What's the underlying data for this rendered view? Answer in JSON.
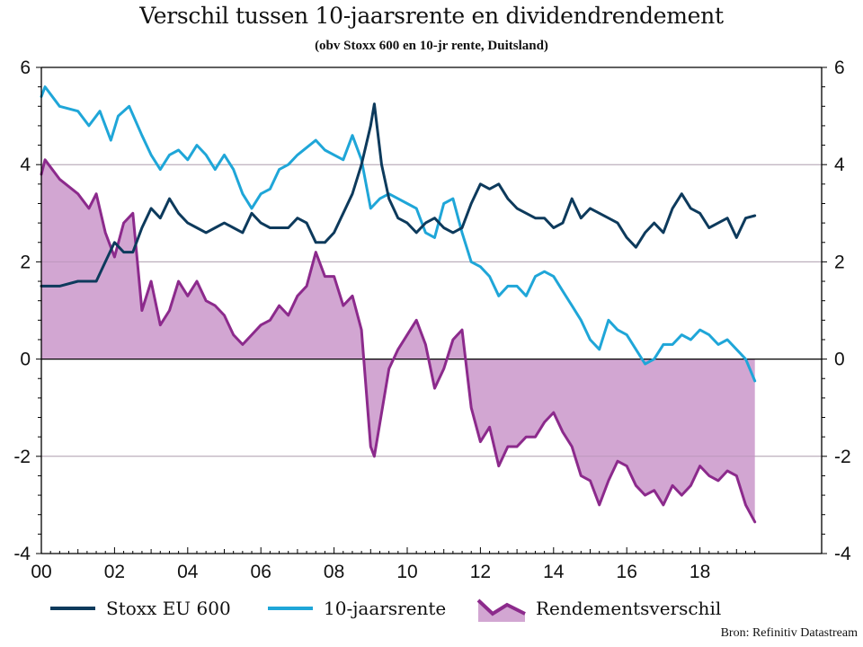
{
  "chart_data": {
    "type": "line",
    "title": "Verschil tussen 10-jaarsrente en dividendrendement",
    "subtitle": "(obv Stoxx 600 en 10-jr rente, Duitsland)",
    "source": "Bron: Refinitiv Datastream",
    "xlabel": "",
    "ylabel": "",
    "xlim": [
      2000,
      2019.6
    ],
    "ylim": [
      -4,
      6
    ],
    "y_ticks": [
      "6",
      "4",
      "2",
      "0",
      "-2",
      "-4"
    ],
    "y_tick_values": [
      6,
      4,
      2,
      0,
      -2,
      -4
    ],
    "x_ticks": [
      "00",
      "02",
      "04",
      "06",
      "08",
      "10",
      "12",
      "14",
      "16",
      "18"
    ],
    "x_tick_values": [
      2000,
      2002,
      2004,
      2006,
      2008,
      2010,
      2012,
      2014,
      2016,
      2018
    ],
    "grid": true,
    "legend_position": "bottom",
    "colors": {
      "stoxx": "#0d3a5c",
      "rente": "#1fa6d8",
      "spread_line": "#8c2a8c",
      "spread_fill": "#d2a6d2",
      "grid": "#c0c0c0",
      "axis": "#000000"
    },
    "series": [
      {
        "name": "Stoxx EU 600",
        "style": "line",
        "x": [
          2000,
          2000.5,
          2001,
          2001.5,
          2001.75,
          2002,
          2002.25,
          2002.5,
          2002.75,
          2003,
          2003.25,
          2003.5,
          2003.75,
          2004,
          2004.25,
          2004.5,
          2004.75,
          2005,
          2005.25,
          2005.5,
          2005.75,
          2006,
          2006.25,
          2006.5,
          2006.75,
          2007,
          2007.25,
          2007.5,
          2007.75,
          2008,
          2008.25,
          2008.5,
          2008.75,
          2009,
          2009.1,
          2009.3,
          2009.5,
          2009.75,
          2010,
          2010.25,
          2010.5,
          2010.75,
          2011,
          2011.25,
          2011.5,
          2011.75,
          2012,
          2012.25,
          2012.5,
          2012.75,
          2013,
          2013.25,
          2013.5,
          2013.75,
          2014,
          2014.25,
          2014.5,
          2014.75,
          2015,
          2015.25,
          2015.5,
          2015.75,
          2016,
          2016.25,
          2016.5,
          2016.75,
          2017,
          2017.25,
          2017.5,
          2017.75,
          2018,
          2018.25,
          2018.5,
          2018.75,
          2019,
          2019.25,
          2019.5
        ],
        "values": [
          1.5,
          1.5,
          1.6,
          1.6,
          2.0,
          2.4,
          2.2,
          2.2,
          2.7,
          3.1,
          2.9,
          3.3,
          3.0,
          2.8,
          2.7,
          2.6,
          2.7,
          2.8,
          2.7,
          2.6,
          3.0,
          2.8,
          2.7,
          2.7,
          2.7,
          2.9,
          2.8,
          2.4,
          2.4,
          2.6,
          3.0,
          3.4,
          4.0,
          4.8,
          5.25,
          4.0,
          3.3,
          2.9,
          2.8,
          2.6,
          2.8,
          2.9,
          2.7,
          2.6,
          2.7,
          3.2,
          3.6,
          3.5,
          3.6,
          3.3,
          3.1,
          3.0,
          2.9,
          2.9,
          2.7,
          2.8,
          3.3,
          2.9,
          3.1,
          3.0,
          2.9,
          2.8,
          2.5,
          2.3,
          2.6,
          2.8,
          2.6,
          3.1,
          3.4,
          3.1,
          3.0,
          2.7,
          2.8,
          2.9,
          2.5,
          2.9,
          2.95
        ]
      },
      {
        "name": "10-jaarsrente",
        "style": "line",
        "x": [
          2000,
          2000.1,
          2000.5,
          2001,
          2001.3,
          2001.6,
          2001.9,
          2002.1,
          2002.4,
          2002.75,
          2003,
          2003.25,
          2003.5,
          2003.75,
          2004,
          2004.25,
          2004.5,
          2004.75,
          2005,
          2005.25,
          2005.5,
          2005.75,
          2006,
          2006.25,
          2006.5,
          2006.75,
          2007,
          2007.5,
          2007.75,
          2008,
          2008.25,
          2008.5,
          2008.75,
          2009,
          2009.25,
          2009.5,
          2009.75,
          2010,
          2010.25,
          2010.5,
          2010.75,
          2011,
          2011.25,
          2011.5,
          2011.75,
          2012,
          2012.25,
          2012.5,
          2012.75,
          2013,
          2013.25,
          2013.5,
          2013.75,
          2014,
          2014.25,
          2014.5,
          2014.75,
          2015,
          2015.25,
          2015.5,
          2015.75,
          2016,
          2016.25,
          2016.5,
          2016.75,
          2017,
          2017.25,
          2017.5,
          2017.75,
          2018,
          2018.25,
          2018.5,
          2018.75,
          2019,
          2019.25,
          2019.5
        ],
        "values": [
          5.4,
          5.6,
          5.2,
          5.1,
          4.8,
          5.1,
          4.5,
          5.0,
          5.2,
          4.6,
          4.2,
          3.9,
          4.2,
          4.3,
          4.1,
          4.4,
          4.2,
          3.9,
          4.2,
          3.9,
          3.4,
          3.1,
          3.4,
          3.5,
          3.9,
          4.0,
          4.2,
          4.5,
          4.3,
          4.2,
          4.1,
          4.6,
          4.1,
          3.1,
          3.3,
          3.4,
          3.3,
          3.2,
          3.1,
          2.6,
          2.5,
          3.2,
          3.3,
          2.6,
          2.0,
          1.9,
          1.7,
          1.3,
          1.5,
          1.5,
          1.3,
          1.7,
          1.8,
          1.7,
          1.4,
          1.1,
          0.8,
          0.4,
          0.2,
          0.8,
          0.6,
          0.5,
          0.2,
          -0.1,
          0.0,
          0.3,
          0.3,
          0.5,
          0.4,
          0.6,
          0.5,
          0.3,
          0.4,
          0.2,
          0.0,
          -0.45
        ]
      },
      {
        "name": "Rendementsverschil",
        "style": "area",
        "x": [
          2000,
          2000.1,
          2000.5,
          2001,
          2001.3,
          2001.5,
          2001.75,
          2002,
          2002.25,
          2002.5,
          2002.75,
          2003,
          2003.25,
          2003.5,
          2003.75,
          2004,
          2004.25,
          2004.5,
          2004.75,
          2005,
          2005.25,
          2005.5,
          2005.75,
          2006,
          2006.25,
          2006.5,
          2006.75,
          2007,
          2007.25,
          2007.5,
          2007.75,
          2008,
          2008.25,
          2008.5,
          2008.75,
          2009,
          2009.1,
          2009.5,
          2009.75,
          2010,
          2010.25,
          2010.5,
          2010.75,
          2011,
          2011.25,
          2011.5,
          2011.75,
          2012,
          2012.25,
          2012.5,
          2012.75,
          2013,
          2013.25,
          2013.5,
          2013.75,
          2014,
          2014.25,
          2014.5,
          2014.75,
          2015,
          2015.25,
          2015.5,
          2015.75,
          2016,
          2016.25,
          2016.5,
          2016.75,
          2017,
          2017.25,
          2017.5,
          2017.75,
          2018,
          2018.25,
          2018.5,
          2018.75,
          2019,
          2019.25,
          2019.5
        ],
        "values": [
          3.8,
          4.1,
          3.7,
          3.4,
          3.1,
          3.4,
          2.6,
          2.1,
          2.8,
          3.0,
          1.0,
          1.6,
          0.7,
          1.0,
          1.6,
          1.3,
          1.6,
          1.2,
          1.1,
          0.9,
          0.5,
          0.3,
          0.5,
          0.7,
          0.8,
          1.1,
          0.9,
          1.3,
          1.5,
          2.2,
          1.7,
          1.7,
          1.1,
          1.3,
          0.6,
          -1.8,
          -2.0,
          -0.2,
          0.2,
          0.5,
          0.8,
          0.3,
          -0.6,
          -0.2,
          0.4,
          0.6,
          -1.0,
          -1.7,
          -1.4,
          -2.2,
          -1.8,
          -1.8,
          -1.6,
          -1.6,
          -1.3,
          -1.1,
          -1.5,
          -1.8,
          -2.4,
          -2.5,
          -3.0,
          -2.5,
          -2.1,
          -2.2,
          -2.6,
          -2.8,
          -2.7,
          -3.0,
          -2.6,
          -2.8,
          -2.6,
          -2.2,
          -2.4,
          -2.5,
          -2.3,
          -2.4,
          -3.0,
          -3.35
        ]
      }
    ]
  }
}
